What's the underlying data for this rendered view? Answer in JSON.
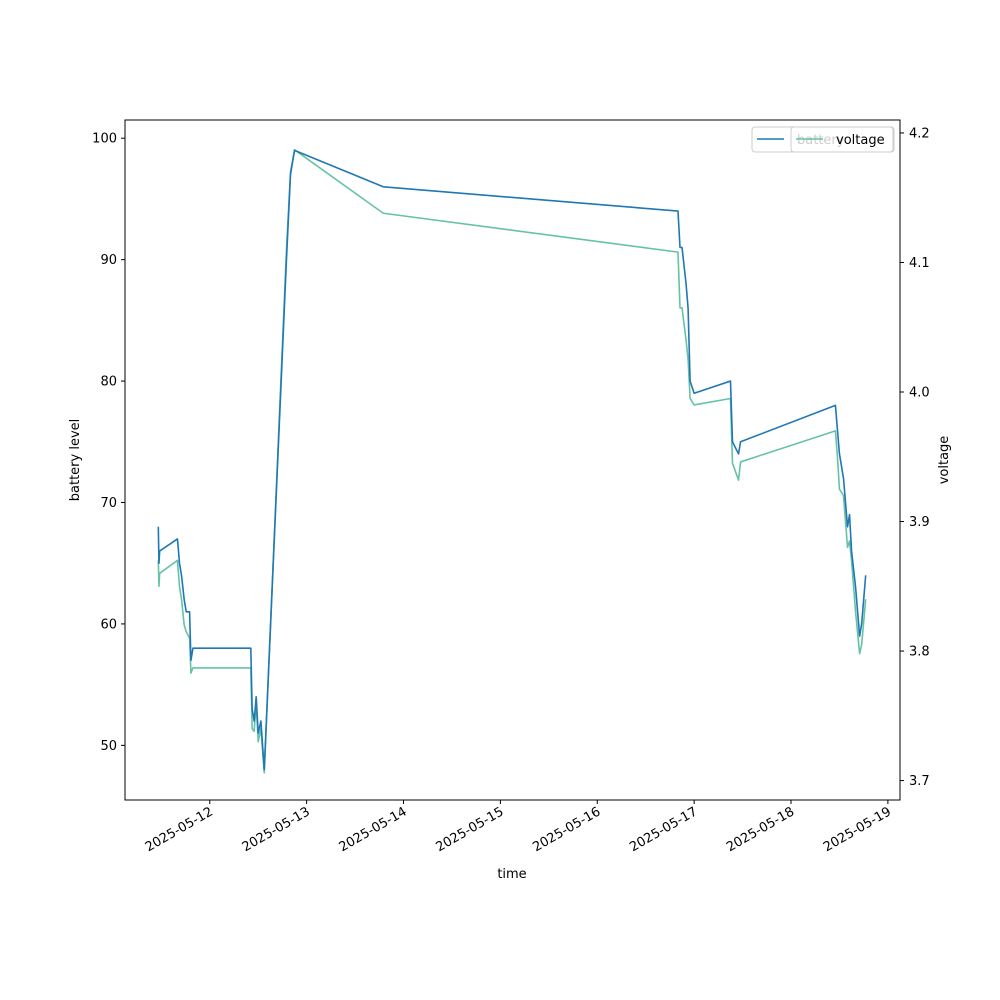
{
  "chart_data": {
    "type": "line",
    "xlabel": "time",
    "ylabel_left": "battery level",
    "ylabel_right": "voltage",
    "xlim": [
      "2025-05-11 03:00",
      "2025-05-19 03:00"
    ],
    "ylim_left": [
      45.5,
      101.5
    ],
    "ylim_right": [
      3.685,
      4.21
    ],
    "x_ticks": [
      "2025-05-12",
      "2025-05-13",
      "2025-05-14",
      "2025-05-15",
      "2025-05-16",
      "2025-05-17",
      "2025-05-18",
      "2025-05-19"
    ],
    "y_ticks_left": [
      50,
      60,
      70,
      80,
      90,
      100
    ],
    "y_ticks_right": [
      3.7,
      3.8,
      3.9,
      4.0,
      4.1,
      4.2
    ],
    "grid": false,
    "legend": {
      "placement": "top-right",
      "entries": [
        "battery",
        "voltage"
      ]
    },
    "series": [
      {
        "name": "battery",
        "axis": "left",
        "color": "#1f77b4",
        "points": [
          [
            "2025-05-11 11:15",
            68
          ],
          [
            "2025-05-11 11:25",
            65
          ],
          [
            "2025-05-11 11:35",
            66
          ],
          [
            "2025-05-11 16:00",
            67
          ],
          [
            "2025-05-11 16:30",
            65
          ],
          [
            "2025-05-11 17:00",
            64
          ],
          [
            "2025-05-11 17:40",
            62
          ],
          [
            "2025-05-11 18:10",
            61
          ],
          [
            "2025-05-11 19:00",
            61
          ],
          [
            "2025-05-11 19:20",
            57
          ],
          [
            "2025-05-11 19:50",
            58
          ],
          [
            "2025-05-12 10:10",
            58
          ],
          [
            "2025-05-12 10:30",
            53
          ],
          [
            "2025-05-12 11:00",
            52
          ],
          [
            "2025-05-12 11:30",
            54
          ],
          [
            "2025-05-12 12:00",
            51
          ],
          [
            "2025-05-12 12:40",
            52
          ],
          [
            "2025-05-12 13:30",
            48
          ],
          [
            "2025-05-12 19:00",
            90
          ],
          [
            "2025-05-12 20:00",
            97
          ],
          [
            "2025-05-12 21:00",
            99
          ],
          [
            "2025-05-13 19:00",
            96
          ],
          [
            "2025-05-16 20:00",
            94
          ],
          [
            "2025-05-16 20:30",
            91
          ],
          [
            "2025-05-16 21:00",
            91
          ],
          [
            "2025-05-16 22:00",
            88
          ],
          [
            "2025-05-16 22:30",
            86
          ],
          [
            "2025-05-16 23:00",
            80
          ],
          [
            "2025-05-17 00:00",
            79
          ],
          [
            "2025-05-17 09:00",
            80
          ],
          [
            "2025-05-17 09:30",
            75
          ],
          [
            "2025-05-17 11:00",
            74
          ],
          [
            "2025-05-17 11:30",
            75
          ],
          [
            "2025-05-18 11:00",
            78
          ],
          [
            "2025-05-18 11:30",
            76
          ],
          [
            "2025-05-18 12:00",
            74
          ],
          [
            "2025-05-18 13:00",
            72
          ],
          [
            "2025-05-18 14:00",
            68
          ],
          [
            "2025-05-18 14:30",
            69
          ],
          [
            "2025-05-18 15:00",
            66
          ],
          [
            "2025-05-18 16:00",
            63
          ],
          [
            "2025-05-18 17:00",
            59
          ],
          [
            "2025-05-18 17:30",
            60
          ],
          [
            "2025-05-18 18:30",
            64
          ]
        ]
      },
      {
        "name": "voltage",
        "axis": "right",
        "color": "#66c2a5",
        "points": [
          [
            "2025-05-11 11:15",
            3.87
          ],
          [
            "2025-05-11 11:25",
            3.85
          ],
          [
            "2025-05-11 11:35",
            3.86
          ],
          [
            "2025-05-11 16:00",
            3.87
          ],
          [
            "2025-05-11 16:30",
            3.85
          ],
          [
            "2025-05-11 17:00",
            3.84
          ],
          [
            "2025-05-11 17:40",
            3.82
          ],
          [
            "2025-05-11 18:10",
            3.815
          ],
          [
            "2025-05-11 19:00",
            3.81
          ],
          [
            "2025-05-11 19:20",
            3.783
          ],
          [
            "2025-05-11 19:50",
            3.787
          ],
          [
            "2025-05-12 10:10",
            3.787
          ],
          [
            "2025-05-12 10:30",
            3.74
          ],
          [
            "2025-05-12 11:00",
            3.738
          ],
          [
            "2025-05-12 11:30",
            3.76
          ],
          [
            "2025-05-12 12:00",
            3.73
          ],
          [
            "2025-05-12 12:40",
            3.74
          ],
          [
            "2025-05-12 13:30",
            3.706
          ],
          [
            "2025-05-12 19:00",
            4.11
          ],
          [
            "2025-05-12 20:00",
            4.17
          ],
          [
            "2025-05-12 21:00",
            4.187
          ],
          [
            "2025-05-13 19:00",
            4.138
          ],
          [
            "2025-05-16 20:00",
            4.108
          ],
          [
            "2025-05-16 20:30",
            4.065
          ],
          [
            "2025-05-16 21:00",
            4.065
          ],
          [
            "2025-05-16 22:00",
            4.04
          ],
          [
            "2025-05-16 22:30",
            4.025
          ],
          [
            "2025-05-16 23:00",
            3.995
          ],
          [
            "2025-05-17 00:00",
            3.99
          ],
          [
            "2025-05-17 09:00",
            3.995
          ],
          [
            "2025-05-17 09:30",
            3.945
          ],
          [
            "2025-05-17 11:00",
            3.932
          ],
          [
            "2025-05-17 11:30",
            3.946
          ],
          [
            "2025-05-18 11:00",
            3.97
          ],
          [
            "2025-05-18 11:30",
            3.95
          ],
          [
            "2025-05-18 12:00",
            3.925
          ],
          [
            "2025-05-18 13:00",
            3.92
          ],
          [
            "2025-05-18 14:00",
            3.88
          ],
          [
            "2025-05-18 14:30",
            3.885
          ],
          [
            "2025-05-18 15:00",
            3.87
          ],
          [
            "2025-05-18 16:00",
            3.83
          ],
          [
            "2025-05-18 17:00",
            3.798
          ],
          [
            "2025-05-18 17:30",
            3.805
          ],
          [
            "2025-05-18 18:30",
            3.84
          ]
        ]
      }
    ]
  }
}
